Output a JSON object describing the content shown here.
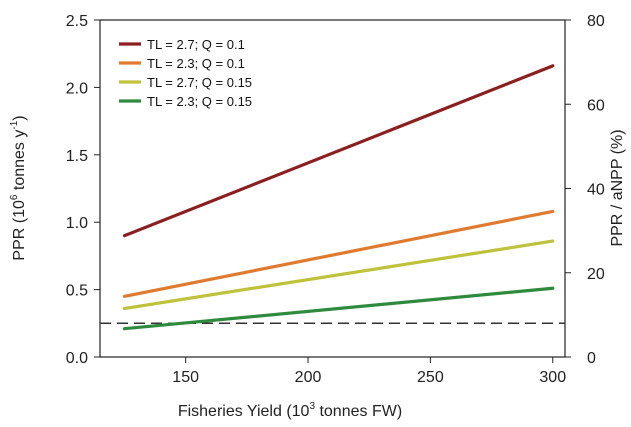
{
  "chart_data": {
    "type": "line",
    "xlabel": "Fisheries Yield (10",
    "xlabel_sup": "3",
    "xlabel_tail": " tonnes FW)",
    "ylabel": "PPR (10",
    "ylabel_sup1": "6",
    "ylabel_mid": " tonnes y",
    "ylabel_sup2": "-1",
    "ylabel_tail": ")",
    "y2label": "PPR / aNPP (%)",
    "xlim": [
      115,
      305
    ],
    "ylim": [
      0,
      2.5
    ],
    "y2lim": [
      0,
      80
    ],
    "xticks": [
      150,
      200,
      250,
      300
    ],
    "yticks": [
      "0.0",
      "0.5",
      "1.0",
      "1.5",
      "2.0",
      "2.5"
    ],
    "y2ticks": [
      "0",
      "20",
      "40",
      "60",
      "80"
    ],
    "legend_position": "top-left",
    "series": [
      {
        "name": "TL = 2.7; Q = 0.1",
        "color": "#8B1E1E",
        "x": [
          125,
          300
        ],
        "y": [
          0.9,
          2.16
        ]
      },
      {
        "name": "TL = 2.3; Q = 0.1",
        "color": "#E07A2E",
        "x": [
          125,
          300
        ],
        "y": [
          0.45,
          1.08
        ]
      },
      {
        "name": "TL = 2.7; Q = 0.15",
        "color": "#BFC23A",
        "x": [
          125,
          300
        ],
        "y": [
          0.36,
          0.86
        ]
      },
      {
        "name": "TL = 2.3; Q = 0.15",
        "color": "#2E8B3E",
        "x": [
          125,
          300
        ],
        "y": [
          0.21,
          0.51
        ]
      }
    ],
    "reference_line": {
      "y": 0.25,
      "style": "dashed",
      "color": "#333333"
    }
  }
}
